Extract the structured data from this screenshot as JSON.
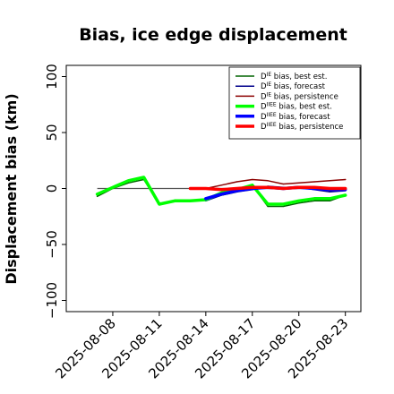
{
  "chart_data": {
    "type": "line",
    "title": "Bias, ice edge displacement",
    "xlabel": "",
    "ylabel": "Displacement bias (km)",
    "ylim": [
      -110,
      110
    ],
    "yticks": [
      -100,
      -50,
      0,
      50,
      100
    ],
    "ytick_labels": [
      "−100",
      "−50",
      "0",
      "50",
      "100"
    ],
    "xlim": [
      "2025-08-05",
      "2025-08-24"
    ],
    "xticks": [
      "2025-08-08",
      "2025-08-11",
      "2025-08-14",
      "2025-08-17",
      "2025-08-20",
      "2025-08-23"
    ],
    "highlight_tick": "2025-08-14",
    "highlight_color": "#228B22",
    "zero_line": true,
    "grid": false,
    "legend_position": "top-right",
    "series": [
      {
        "name": "D^IE bias, best est.",
        "legend_base": "D",
        "legend_sup": "IE",
        "legend_rest": " bias, best est.",
        "color": "#006400",
        "width": 1.5,
        "x": [
          "2025-08-07",
          "2025-08-08",
          "2025-08-09",
          "2025-08-10",
          "2025-08-11",
          "2025-08-12",
          "2025-08-13",
          "2025-08-14",
          "2025-08-15",
          "2025-08-16",
          "2025-08-17",
          "2025-08-18",
          "2025-08-19",
          "2025-08-20",
          "2025-08-21",
          "2025-08-22",
          "2025-08-23"
        ],
        "y": [
          -7,
          0,
          5,
          8,
          -14,
          -11,
          -11,
          -10,
          -6,
          -3,
          3,
          -16,
          -16,
          -13,
          -11,
          -11,
          -6
        ]
      },
      {
        "name": "D^IE bias, forecast",
        "legend_base": "D",
        "legend_sup": "IE",
        "legend_rest": " bias, forecast",
        "color": "#00008B",
        "width": 1.5,
        "x": [
          "2025-08-14",
          "2025-08-15",
          "2025-08-16",
          "2025-08-17",
          "2025-08-18",
          "2025-08-19",
          "2025-08-20",
          "2025-08-21",
          "2025-08-22",
          "2025-08-23"
        ],
        "y": [
          -11,
          -6,
          -3,
          -1,
          2,
          1,
          1,
          -1,
          -3,
          -2
        ]
      },
      {
        "name": "D^IE bias, persistence",
        "legend_base": "D",
        "legend_sup": "IE",
        "legend_rest": " bias, persistence",
        "color": "#8B0000",
        "width": 1.5,
        "x": [
          "2025-08-13",
          "2025-08-14",
          "2025-08-15",
          "2025-08-16",
          "2025-08-17",
          "2025-08-18",
          "2025-08-19",
          "2025-08-20",
          "2025-08-21",
          "2025-08-22",
          "2025-08-23"
        ],
        "y": [
          0,
          0,
          3,
          6,
          8,
          7,
          4,
          5,
          6,
          7,
          8
        ]
      },
      {
        "name": "D^IIEE bias, best est.",
        "legend_base": "D",
        "legend_sup": "IIEE",
        "legend_rest": " bias, best est.",
        "color": "#00FF00",
        "width": 3.5,
        "x": [
          "2025-08-07",
          "2025-08-08",
          "2025-08-09",
          "2025-08-10",
          "2025-08-11",
          "2025-08-12",
          "2025-08-13",
          "2025-08-14",
          "2025-08-15",
          "2025-08-16",
          "2025-08-17",
          "2025-08-18",
          "2025-08-19",
          "2025-08-20",
          "2025-08-21",
          "2025-08-22",
          "2025-08-23"
        ],
        "y": [
          -5,
          1,
          7,
          10,
          -14,
          -11,
          -11,
          -10,
          -4,
          -1,
          3,
          -14,
          -14,
          -11,
          -9,
          -9,
          -6
        ]
      },
      {
        "name": "D^IIEE bias, forecast",
        "legend_base": "D",
        "legend_sup": "IIEE",
        "legend_rest": " bias, forecast",
        "color": "#0000FF",
        "width": 3.5,
        "x": [
          "2025-08-14",
          "2025-08-15",
          "2025-08-16",
          "2025-08-17",
          "2025-08-18",
          "2025-08-19",
          "2025-08-20",
          "2025-08-21",
          "2025-08-22",
          "2025-08-23"
        ],
        "y": [
          -9,
          -5,
          -2,
          0,
          1,
          0,
          1,
          0,
          -1,
          -1
        ]
      },
      {
        "name": "D^IIEE bias, persistence",
        "legend_base": "D",
        "legend_sup": "IIEE",
        "legend_rest": " bias, persistence",
        "color": "#FF0000",
        "width": 3.5,
        "x": [
          "2025-08-13",
          "2025-08-14",
          "2025-08-15",
          "2025-08-16",
          "2025-08-17",
          "2025-08-18",
          "2025-08-19",
          "2025-08-20",
          "2025-08-21",
          "2025-08-22",
          "2025-08-23"
        ],
        "y": [
          0,
          0,
          -1,
          0,
          1,
          1,
          0,
          1,
          1,
          0,
          0
        ]
      }
    ]
  }
}
